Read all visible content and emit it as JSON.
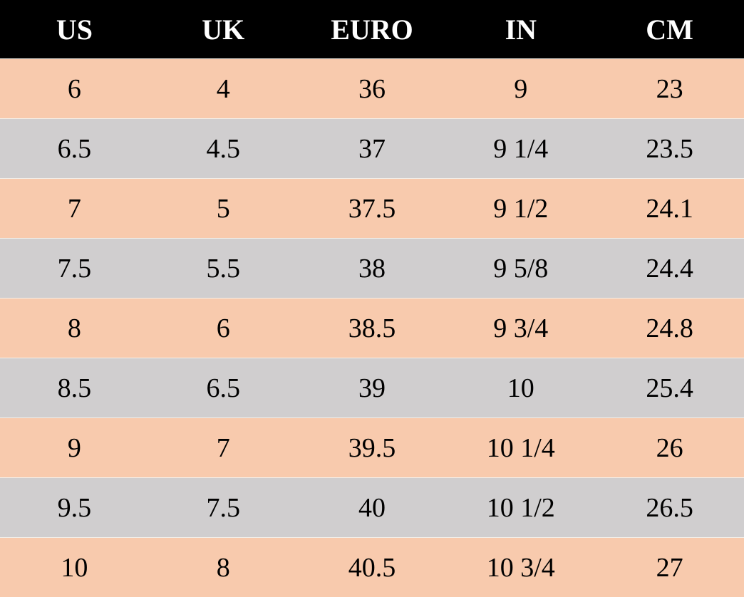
{
  "colors": {
    "header_bg": "#000000",
    "header_text": "#ffffff",
    "row_odd": "#f8caad",
    "row_even": "#d0cecf"
  },
  "headers": [
    "US",
    "UK",
    "EURO",
    "IN",
    "CM"
  ],
  "rows": [
    [
      "6",
      "4",
      "36",
      "9",
      "23"
    ],
    [
      "6.5",
      "4.5",
      "37",
      "9 1/4",
      "23.5"
    ],
    [
      "7",
      "5",
      "37.5",
      "9 1/2",
      "24.1"
    ],
    [
      "7.5",
      "5.5",
      "38",
      "9 5/8",
      "24.4"
    ],
    [
      "8",
      "6",
      "38.5",
      "9 3/4",
      "24.8"
    ],
    [
      "8.5",
      "6.5",
      "39",
      "10",
      "25.4"
    ],
    [
      "9",
      "7",
      "39.5",
      "10 1/4",
      "26"
    ],
    [
      "9.5",
      "7.5",
      "40",
      "10 1/2",
      "26.5"
    ],
    [
      "10",
      "8",
      "40.5",
      "10 3/4",
      "27"
    ]
  ]
}
